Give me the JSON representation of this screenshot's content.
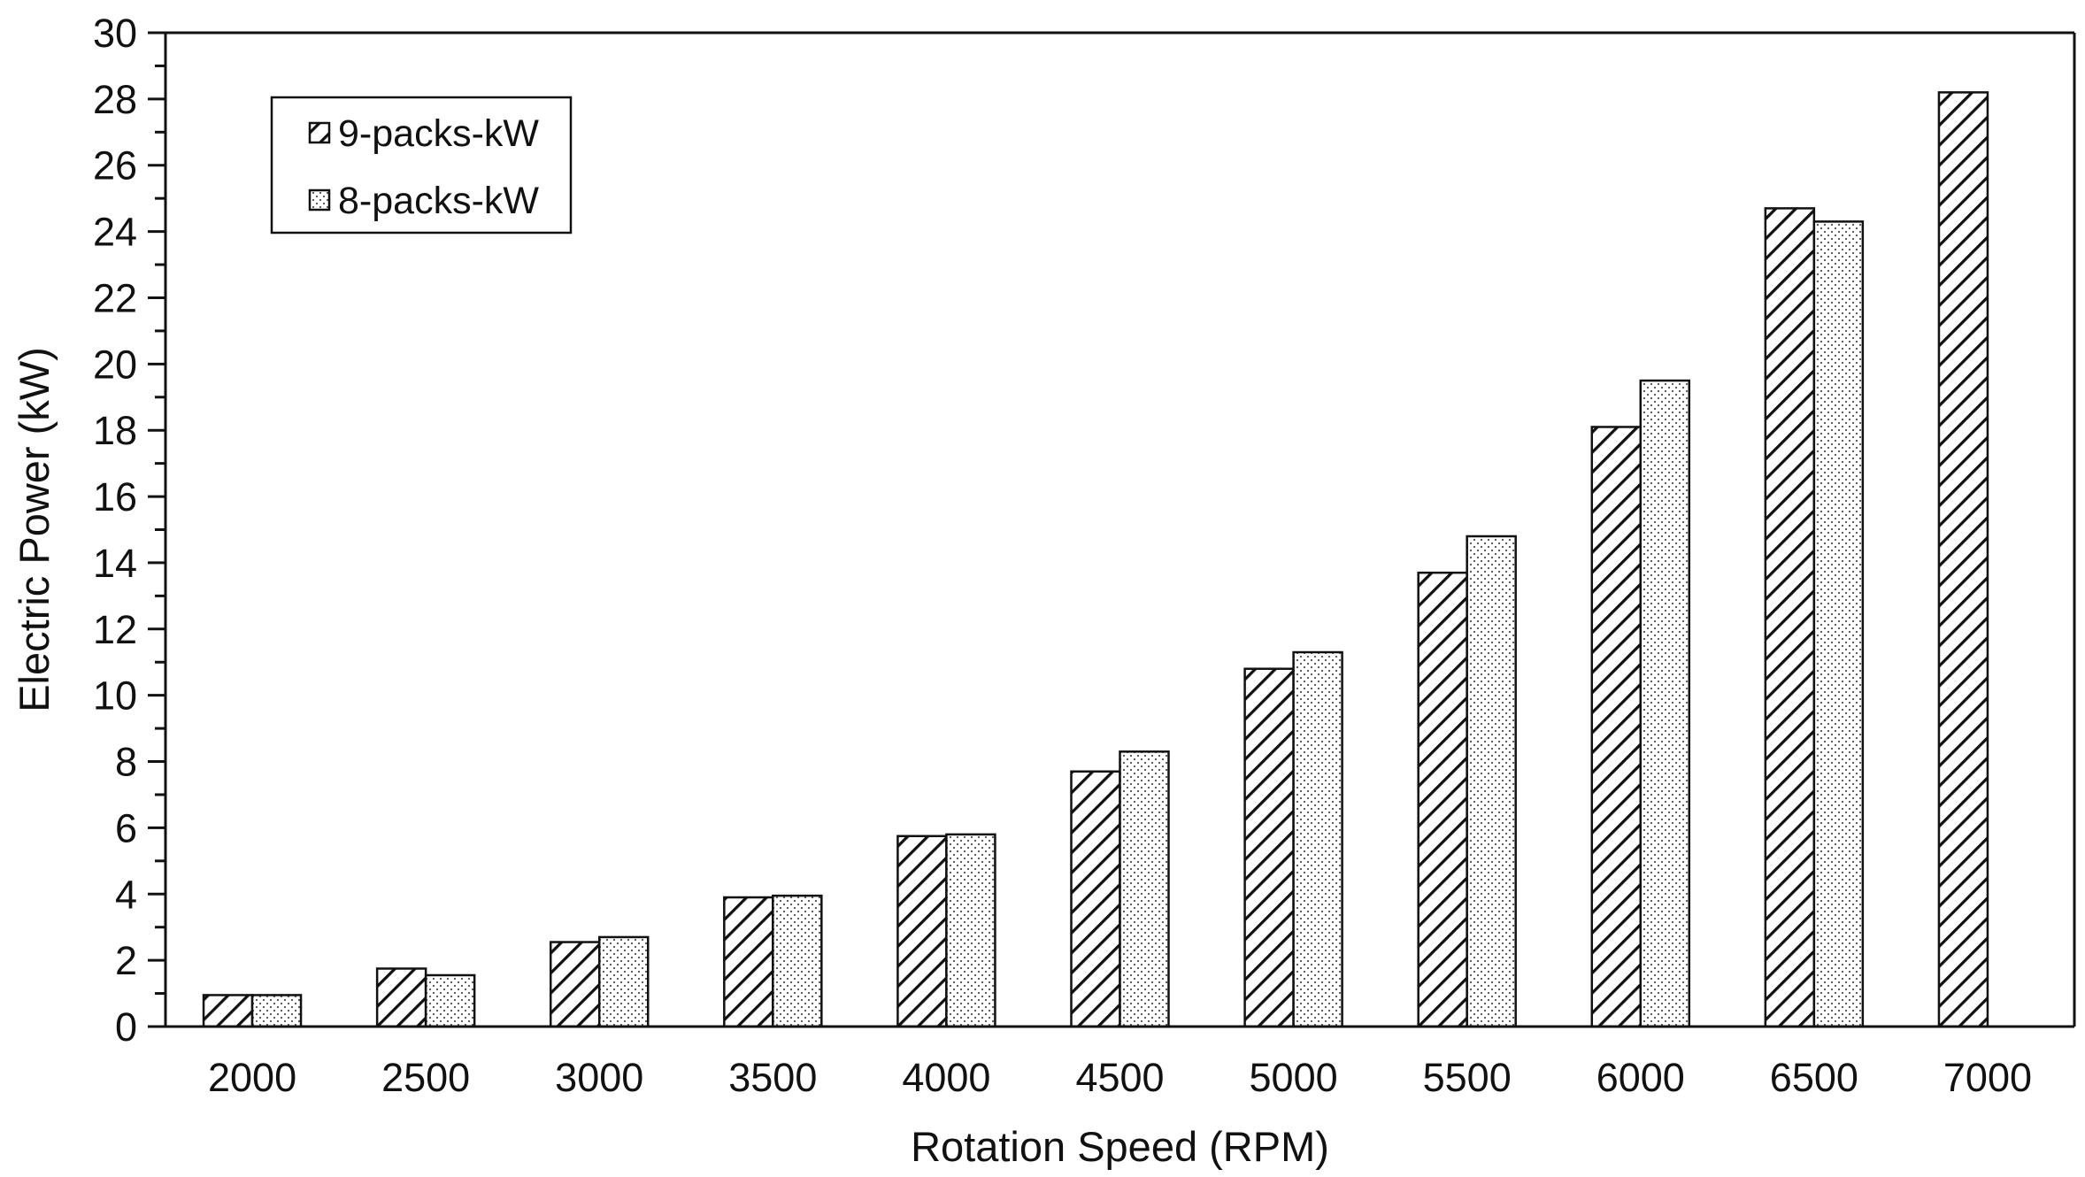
{
  "chart_data": {
    "type": "bar",
    "title": "",
    "xlabel": "Rotation Speed (RPM)",
    "ylabel": "Electric Power  (kW)",
    "categories": [
      "2000",
      "2500",
      "3000",
      "3500",
      "4000",
      "4500",
      "5000",
      "5500",
      "6000",
      "6500",
      "7000"
    ],
    "series": [
      {
        "name": "9-packs-kW",
        "pattern": "diagonal-hatch",
        "values": [
          0.95,
          1.75,
          2.55,
          3.9,
          5.75,
          7.7,
          10.8,
          13.7,
          18.1,
          24.7,
          28.2
        ]
      },
      {
        "name": "8-packs-kW",
        "pattern": "dotted",
        "values": [
          0.95,
          1.55,
          2.7,
          3.95,
          5.8,
          8.3,
          11.3,
          14.8,
          19.5,
          24.3,
          null
        ]
      }
    ],
    "ylim": [
      0,
      30
    ],
    "y_major_step": 2,
    "y_minor_step": 1,
    "y_ticks": [
      "0",
      "2",
      "4",
      "6",
      "8",
      "10",
      "12",
      "14",
      "16",
      "18",
      "20",
      "22",
      "24",
      "26",
      "28",
      "30"
    ],
    "grid": false,
    "legend_position": "top-left",
    "colors": {
      "axis": "#111111",
      "bar_fill": "#ffffff",
      "hatch": "#111111",
      "dots": "#555555"
    }
  }
}
